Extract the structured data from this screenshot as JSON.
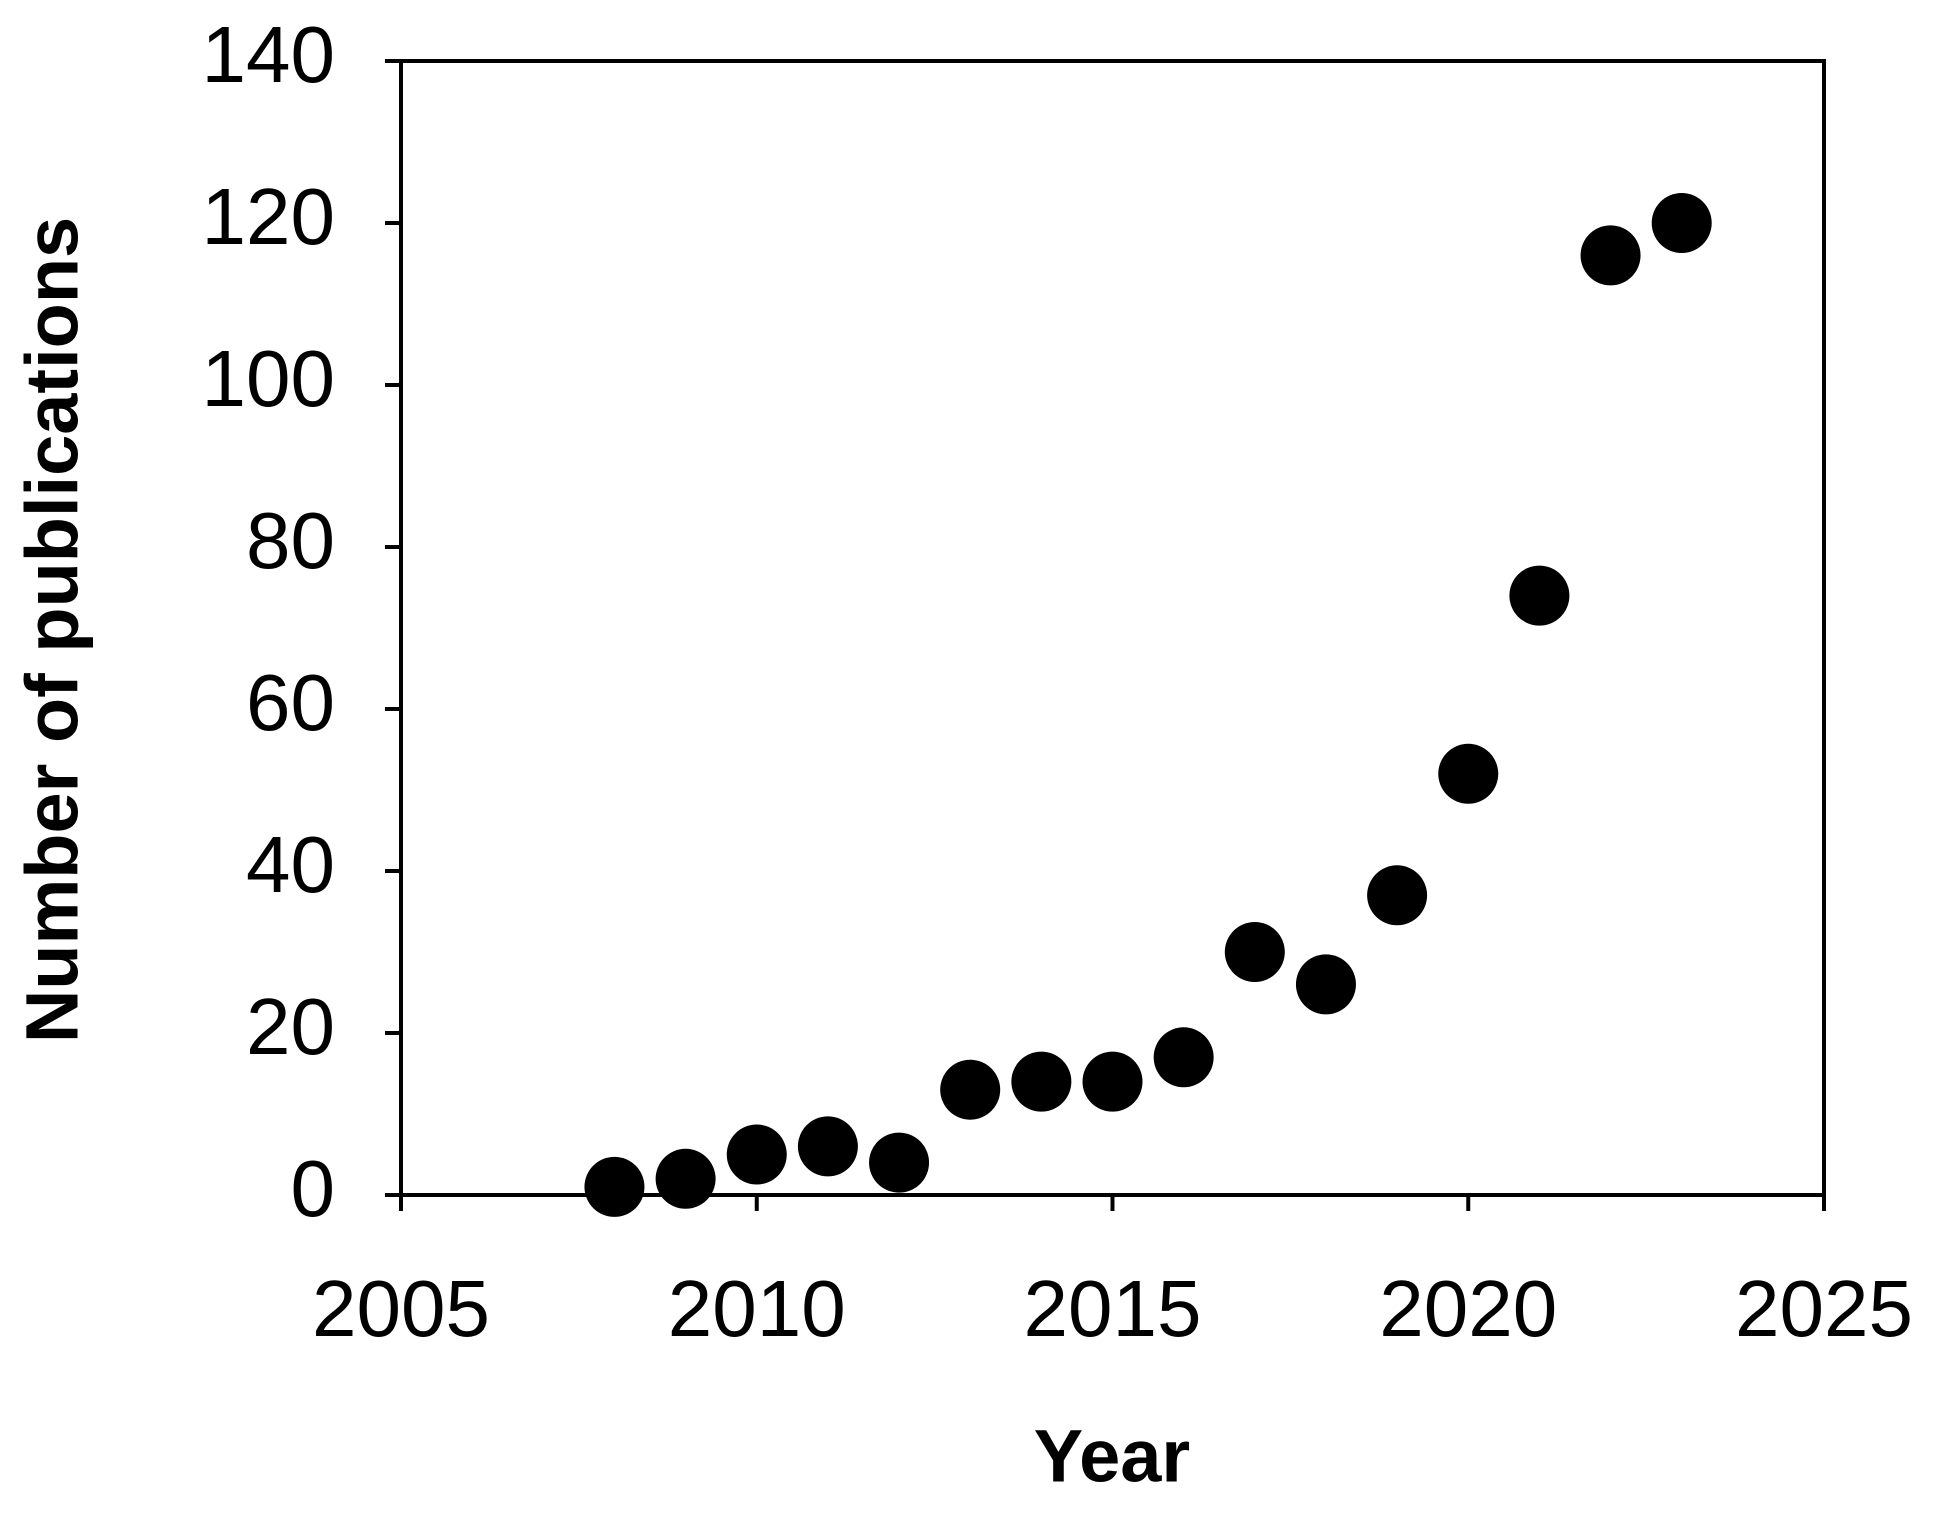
{
  "chart_data": {
    "type": "scatter",
    "x_label": "Year",
    "y_label": "Number of publications",
    "x": [
      2008,
      2009,
      2010,
      2011,
      2012,
      2013,
      2014,
      2015,
      2016,
      2017,
      2018,
      2019,
      2020,
      2021,
      2022,
      2023
    ],
    "values": [
      1,
      2,
      5,
      6,
      4,
      13,
      14,
      14,
      17,
      30,
      26,
      37,
      52,
      74,
      116,
      120
    ],
    "color": "#000000",
    "xlim": [
      2005,
      2025
    ],
    "xticks": [
      2005,
      2010,
      2015,
      2020,
      2025
    ],
    "ylim": [
      0,
      140
    ],
    "yticks": [
      0,
      20,
      40,
      60,
      80,
      100,
      120,
      140
    ],
    "grid": false
  }
}
